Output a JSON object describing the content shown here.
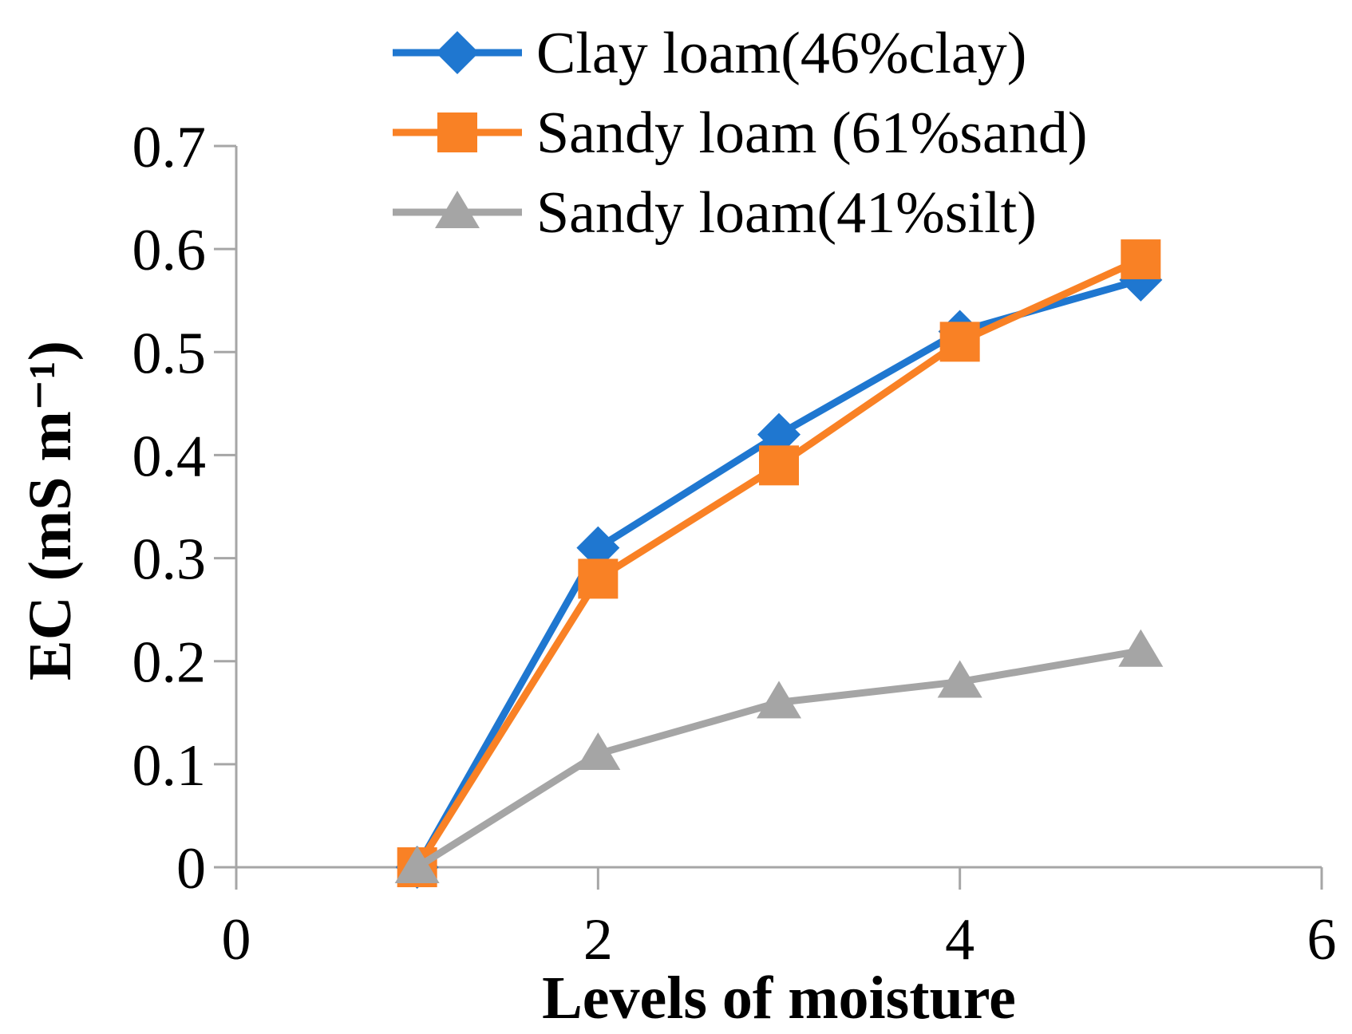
{
  "chart_data": {
    "type": "scatter",
    "xlabel": "Levels of moisture",
    "ylabel": "EC (mS m⁻¹)",
    "xlim": [
      0,
      6
    ],
    "ylim": [
      0,
      0.7
    ],
    "xticks": [
      0,
      2,
      4,
      6
    ],
    "yticks": [
      0,
      0.1,
      0.2,
      0.3,
      0.4,
      0.5,
      0.6,
      0.7
    ],
    "xtick_labels": [
      "0",
      "2",
      "4",
      "6"
    ],
    "ytick_labels": [
      "0",
      "0.1",
      "0.2",
      "0.3",
      "0.4",
      "0.5",
      "0.6",
      "0.7"
    ],
    "grid": false,
    "legend_position": "top",
    "series": [
      {
        "name": "Clay loam(46%clay)",
        "color": "#1F77D0",
        "marker": "diamond",
        "x": [
          1,
          2,
          3,
          4,
          5
        ],
        "y": [
          0,
          0.31,
          0.42,
          0.52,
          0.57
        ]
      },
      {
        "name": "Sandy loam (61%sand)",
        "color": "#F98125",
        "marker": "square",
        "x": [
          1,
          2,
          3,
          4,
          5
        ],
        "y": [
          0,
          0.28,
          0.39,
          0.51,
          0.59
        ]
      },
      {
        "name": "Sandy loam(41%silt)",
        "color": "#A5A5A5",
        "marker": "triangle",
        "x": [
          1,
          2,
          3,
          4,
          5
        ],
        "y": [
          0,
          0.11,
          0.16,
          0.18,
          0.21
        ]
      }
    ]
  }
}
